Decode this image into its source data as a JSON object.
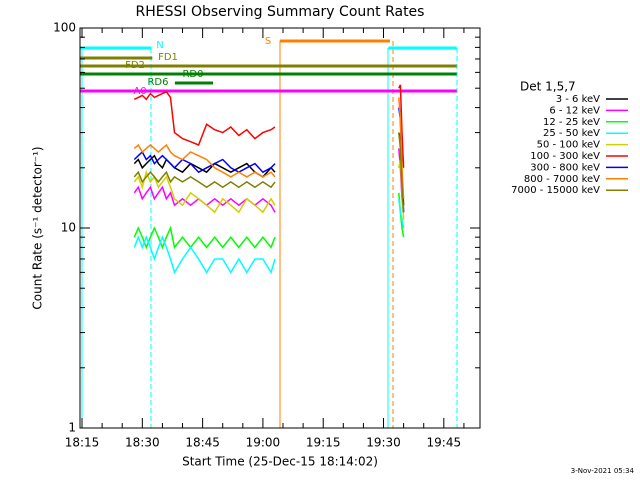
{
  "chart_data": {
    "type": "line",
    "title": "RHESSI Observing Summary Count Rates",
    "x_label": "Start Time (25-Dec-15 18:14:02)",
    "y_label": "Count Rate (s⁻¹ detector⁻¹)",
    "legend_title": "Det 1,5,7",
    "footer": "3-Nov-2021 05:34",
    "log_y": true,
    "xlim": [
      14.5,
      114
    ],
    "xticks": [
      {
        "value": 15,
        "label": "18:15"
      },
      {
        "value": 30,
        "label": "18:30"
      },
      {
        "value": 45,
        "label": "18:45"
      },
      {
        "value": 60,
        "label": "19:00"
      },
      {
        "value": 75,
        "label": "19:15"
      },
      {
        "value": 90,
        "label": "19:30"
      },
      {
        "value": 105,
        "label": "19:45"
      }
    ],
    "ylim": [
      1,
      100
    ],
    "yticks": [
      1,
      10,
      100
    ],
    "x": [
      28,
      29,
      30,
      31,
      32,
      33,
      34,
      35,
      36,
      37,
      38,
      40,
      42,
      44,
      46,
      48,
      50,
      52,
      54,
      56,
      58,
      60,
      62,
      63,
      78,
      93.8,
      94.2,
      94.6,
      95
    ],
    "series": [
      {
        "name": "3 - 6 keV",
        "color": "#000000",
        "values": [
          21,
          22,
          20,
          21,
          22,
          23,
          21,
          20,
          22,
          21,
          20,
          19,
          21,
          20,
          19,
          21,
          20,
          19,
          20,
          21,
          19,
          18,
          20,
          19,
          null,
          30,
          28,
          18,
          13
        ]
      },
      {
        "name": "6 - 12 keV",
        "color": "#ff00ff",
        "values": [
          15,
          16,
          14,
          15,
          16,
          14,
          15,
          16,
          14,
          15,
          13,
          14,
          13,
          14,
          13,
          14,
          13,
          14,
          13,
          14,
          13,
          14,
          13,
          12,
          null,
          25,
          20,
          14,
          12
        ]
      },
      {
        "name": "12 - 25 keV",
        "color": "#00ff00",
        "values": [
          9,
          10,
          9,
          8,
          9,
          10,
          9,
          8,
          9,
          10,
          8,
          9,
          8,
          9,
          8,
          9,
          8,
          9,
          8,
          9,
          8,
          9,
          8,
          9,
          null,
          15,
          12,
          10,
          9
        ]
      },
      {
        "name": "25 - 50 keV",
        "color": "#00ffff",
        "values": [
          8,
          9,
          8,
          9,
          8,
          7,
          8,
          9,
          8,
          7,
          6,
          7,
          8,
          7,
          6,
          7,
          7,
          6,
          7,
          6,
          7,
          7,
          6,
          7,
          null,
          14,
          12,
          11,
          10
        ]
      },
      {
        "name": "50 - 100 keV",
        "color": "#d0d000",
        "values": [
          17,
          18,
          16,
          19,
          17,
          18,
          16,
          17,
          18,
          16,
          14,
          13,
          15,
          14,
          13,
          12,
          14,
          13,
          12,
          14,
          13,
          12,
          14,
          13,
          null,
          20,
          22,
          15,
          11
        ]
      },
      {
        "name": "100 - 300 keV",
        "color": "#ff0000",
        "values": [
          44,
          45,
          46,
          44,
          47,
          45,
          46,
          47,
          48,
          45,
          30,
          28,
          27,
          26,
          33,
          31,
          30,
          32,
          29,
          31,
          28,
          30,
          31,
          32,
          null,
          50,
          52,
          30,
          20
        ]
      },
      {
        "name": "300 - 800 keV",
        "color": "#0000ff",
        "values": [
          22,
          23,
          24,
          22,
          23,
          21,
          22,
          23,
          22,
          21,
          20,
          22,
          21,
          19,
          20,
          21,
          22,
          20,
          19,
          20,
          21,
          19,
          20,
          21,
          null,
          40,
          35,
          18,
          12
        ]
      },
      {
        "name": "800 - 7000 keV",
        "color": "#ff8000",
        "values": [
          25,
          26,
          24,
          25,
          26,
          25,
          24,
          25,
          26,
          24,
          23,
          22,
          24,
          23,
          22,
          20,
          19,
          18,
          19,
          18,
          19,
          18,
          19,
          18,
          null,
          45,
          35,
          20,
          14
        ]
      },
      {
        "name": "7000 - 15000 keV",
        "color": "#808000",
        "values": [
          18,
          19,
          17,
          18,
          19,
          18,
          17,
          18,
          19,
          17,
          18,
          17,
          18,
          17,
          16,
          17,
          16,
          17,
          16,
          17,
          16,
          17,
          16,
          17,
          null,
          30,
          25,
          16,
          12
        ]
      }
    ],
    "flags": [
      {
        "label": "N",
        "color": "#00ffff",
        "segments": [
          [
            14.5,
            32.3
          ],
          [
            91.2,
            108.2
          ]
        ]
      },
      {
        "label": "S",
        "color": "#ff8000",
        "segments": [
          [
            64.2,
            91.6
          ]
        ]
      },
      {
        "label": "FD1",
        "color": "#808000",
        "segments": [
          [
            14.5,
            108.2
          ]
        ]
      },
      {
        "label": "FD2",
        "color": "#808000",
        "segments": [
          [
            14.5,
            32.5
          ]
        ]
      },
      {
        "label": "RD0",
        "color": "#008000",
        "segments": [
          [
            14.5,
            108.2
          ]
        ]
      },
      {
        "label": "RD6",
        "color": "#008000",
        "segments": [
          [
            38.1,
            47.6
          ]
        ]
      },
      {
        "label": "A0",
        "color": "#ff00ff",
        "segments": [
          [
            14.5,
            108.2
          ]
        ]
      }
    ]
  }
}
